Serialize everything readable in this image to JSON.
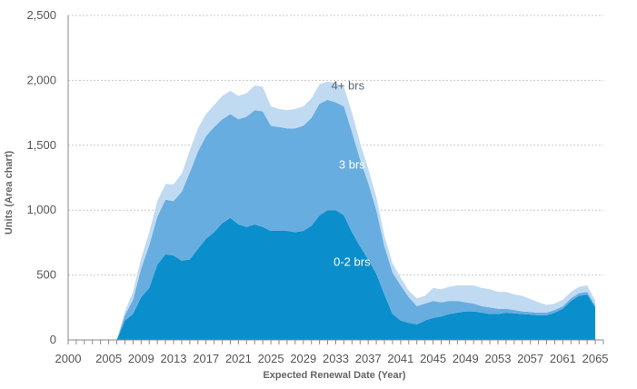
{
  "chart_data": {
    "type": "area",
    "stacked": true,
    "xlabel": "Expected Renewal Date (Year)",
    "ylabel": "Units (Area chart)",
    "ylim": [
      0,
      2500
    ],
    "xlim": [
      2000,
      2066
    ],
    "grid": true,
    "y_ticks": [
      "0",
      "500",
      "1,000",
      "1,500",
      "2,000",
      "2,500"
    ],
    "x_ticks": [
      "2000",
      "2005",
      "2009",
      "2013",
      "2017",
      "2021",
      "2025",
      "2029",
      "2033",
      "2037",
      "2041",
      "2045",
      "2049",
      "2053",
      "2057",
      "2061",
      "2065"
    ],
    "x": [
      2000,
      2001,
      2002,
      2003,
      2004,
      2005,
      2006,
      2007,
      2008,
      2009,
      2010,
      2011,
      2012,
      2013,
      2014,
      2015,
      2016,
      2017,
      2018,
      2019,
      2020,
      2021,
      2022,
      2023,
      2024,
      2025,
      2026,
      2027,
      2028,
      2029,
      2030,
      2031,
      2032,
      2033,
      2034,
      2035,
      2036,
      2037,
      2038,
      2039,
      2040,
      2041,
      2042,
      2043,
      2044,
      2045,
      2046,
      2047,
      2048,
      2049,
      2050,
      2051,
      2052,
      2053,
      2054,
      2055,
      2056,
      2057,
      2058,
      2059,
      2060,
      2061,
      2062,
      2063,
      2064,
      2065
    ],
    "series": [
      {
        "name": "0-2 brs",
        "color": "#0a8fcc",
        "values": [
          0,
          0,
          0,
          0,
          0,
          0,
          0,
          150,
          200,
          330,
          400,
          580,
          660,
          650,
          610,
          620,
          700,
          780,
          830,
          900,
          940,
          890,
          870,
          890,
          870,
          840,
          840,
          840,
          830,
          840,
          880,
          960,
          1000,
          1000,
          960,
          830,
          720,
          620,
          510,
          350,
          200,
          150,
          130,
          120,
          150,
          170,
          180,
          200,
          210,
          220,
          220,
          210,
          200,
          200,
          210,
          205,
          200,
          195,
          190,
          190,
          210,
          240,
          300,
          340,
          350,
          250
        ]
      },
      {
        "name": "3 brs",
        "color": "#68ade0",
        "values": [
          0,
          0,
          0,
          0,
          0,
          0,
          0,
          40,
          110,
          220,
          330,
          370,
          420,
          420,
          530,
          670,
          750,
          790,
          810,
          800,
          800,
          810,
          850,
          880,
          890,
          810,
          800,
          790,
          800,
          810,
          830,
          860,
          850,
          830,
          840,
          770,
          670,
          590,
          490,
          370,
          320,
          270,
          200,
          140,
          130,
          130,
          110,
          100,
          90,
          70,
          60,
          50,
          50,
          40,
          30,
          25,
          20,
          20,
          20,
          20,
          20,
          20,
          20,
          20,
          20,
          15
        ]
      },
      {
        "name": "4+ brs",
        "color": "#c0daf2",
        "values": [
          0,
          0,
          0,
          0,
          0,
          0,
          0,
          30,
          60,
          80,
          100,
          120,
          120,
          130,
          140,
          170,
          180,
          170,
          170,
          180,
          180,
          180,
          180,
          190,
          190,
          150,
          140,
          140,
          150,
          150,
          150,
          150,
          140,
          150,
          150,
          150,
          130,
          110,
          100,
          80,
          70,
          60,
          50,
          60,
          60,
          100,
          100,
          110,
          120,
          130,
          140,
          140,
          140,
          130,
          130,
          120,
          120,
          100,
          80,
          60,
          50,
          50,
          50,
          50,
          50,
          40
        ]
      }
    ],
    "labels": [
      {
        "text": "4+ brs",
        "color": "#5a6570"
      },
      {
        "text": "3 brs",
        "color": "#ffffff"
      },
      {
        "text": "0-2 brs",
        "color": "#ffffff"
      }
    ],
    "colors": {
      "grid": "#c8c8c8",
      "axis": "#8a8a8a",
      "text": "#555555"
    }
  }
}
